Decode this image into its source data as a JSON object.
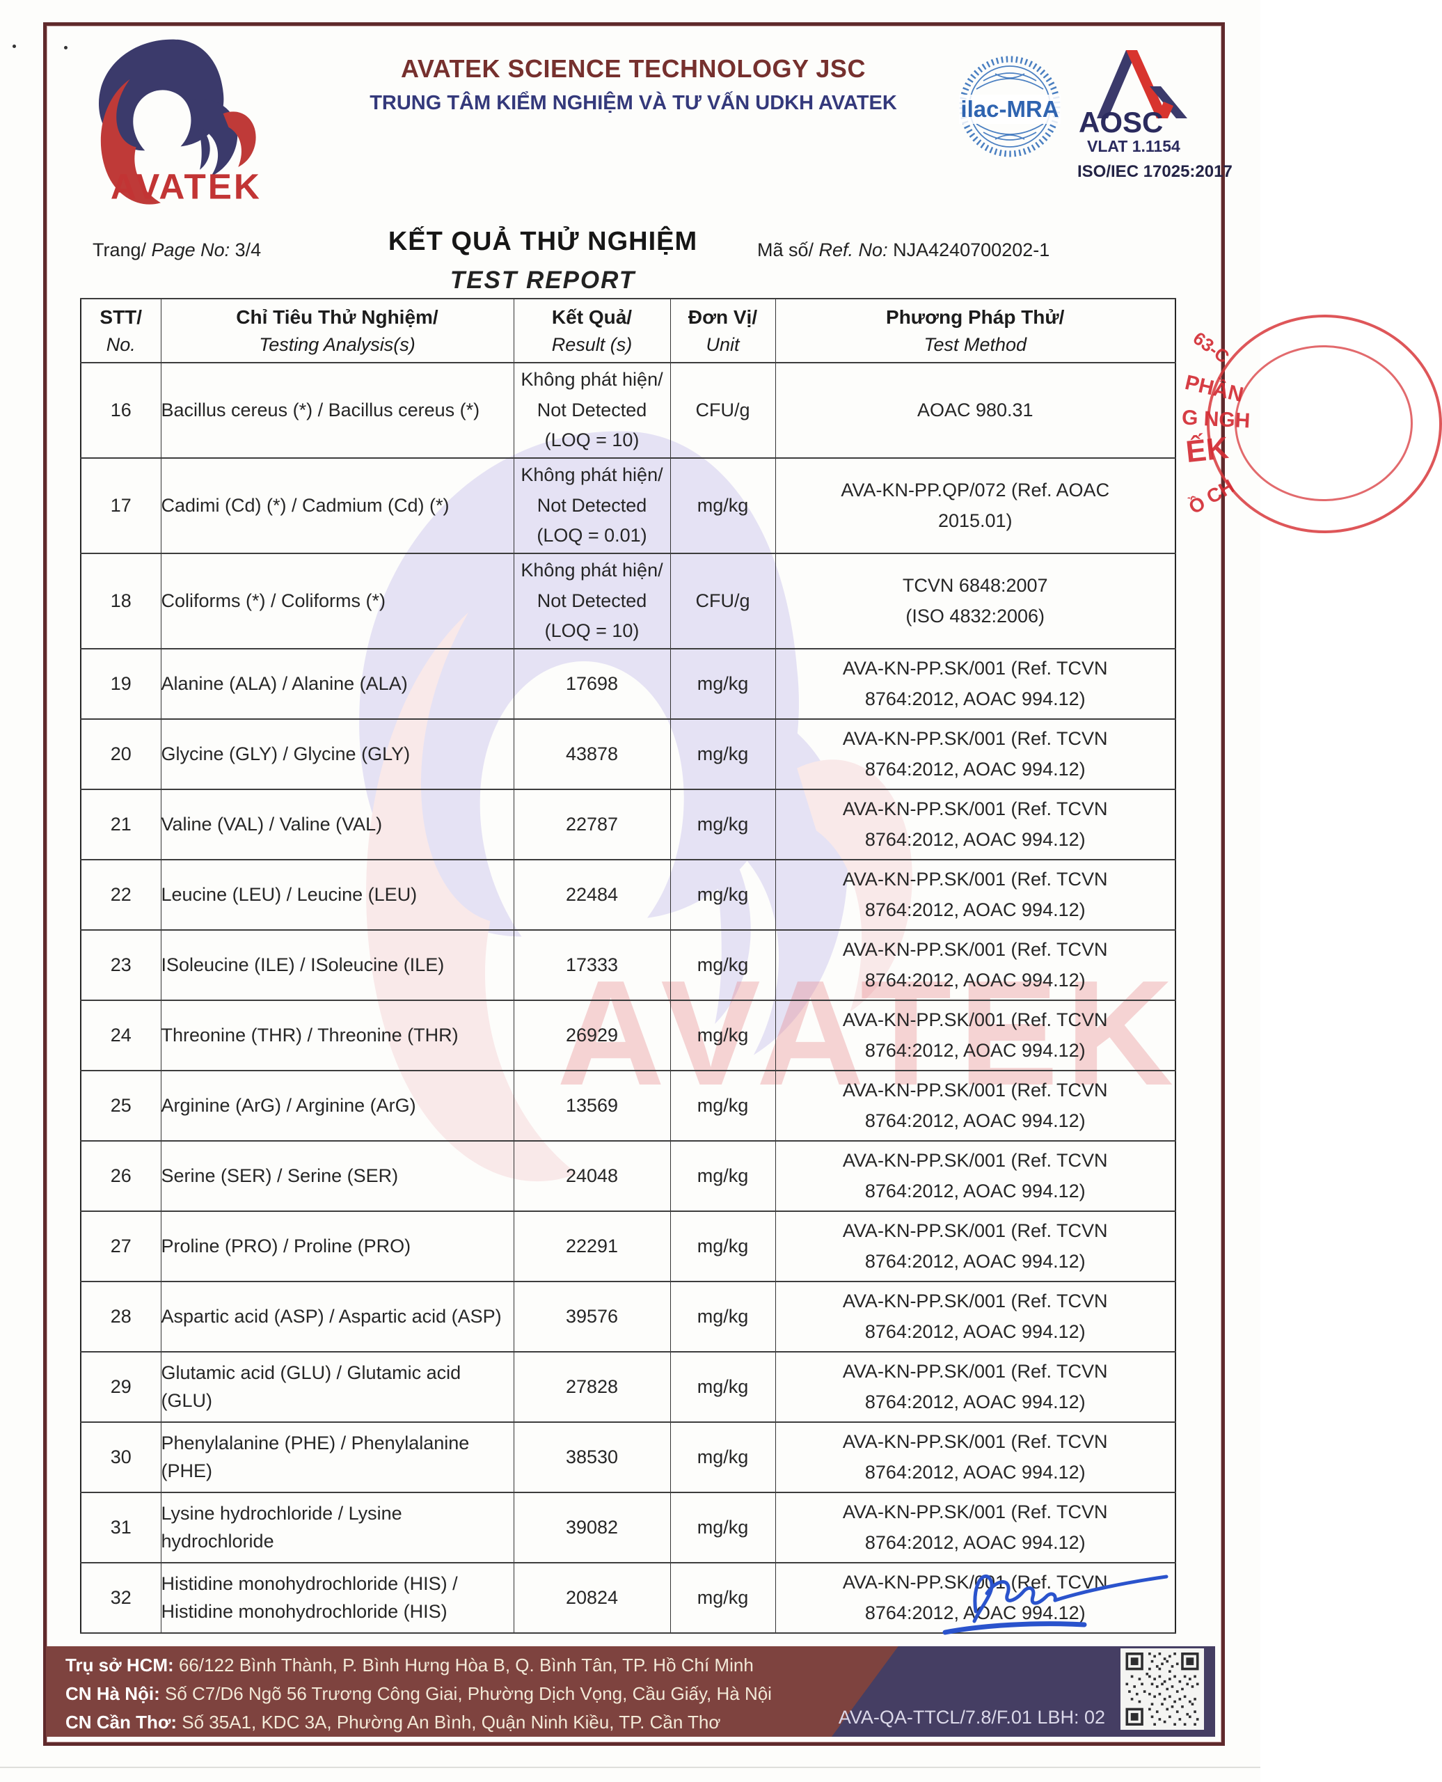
{
  "header": {
    "logo_text": "AVATEK",
    "company_name": "AVATEK SCIENCE TECHNOLOGY JSC",
    "center_name": "TRUNG TÂM KIỂM NGHIỆM VÀ TƯ VẤN UDKH AVATEK",
    "ilac_label": "ilac-MRA",
    "aosc": {
      "name": "AOSC",
      "vlat": "VLAT 1.1154",
      "iso": "ISO/IEC 17025:2017"
    }
  },
  "title": {
    "page_label": "Trang/ ",
    "page_label_en": "Page No:",
    "page_value": " 3/4",
    "title_vi": "KẾT QUẢ THỬ NGHIỆM",
    "title_en": "TEST REPORT",
    "ref_label": "Mã số/ ",
    "ref_label_en": "Ref. No:",
    "ref_value": " NJA4240700202-1"
  },
  "watermark": {
    "text": "AVATEK"
  },
  "table": {
    "headers": [
      {
        "vi": "STT/",
        "en": "No."
      },
      {
        "vi": "Chỉ Tiêu Thử Nghiệm/",
        "en": "Testing Analysis(s)"
      },
      {
        "vi": "Kết Quả/",
        "en": "Result (s)"
      },
      {
        "vi": "Đơn Vị/",
        "en": "Unit"
      },
      {
        "vi": "Phương Pháp Thử/",
        "en": "Test Method"
      }
    ],
    "rows": [
      {
        "no": "16",
        "analysis": [
          "Bacillus cereus (*) / Bacillus cereus (*)"
        ],
        "result": [
          "Không phát hiện/",
          "Not Detected",
          "(LOQ = 10)"
        ],
        "unit": "CFU/g",
        "method": [
          "AOAC 980.31"
        ]
      },
      {
        "no": "17",
        "analysis": [
          "Cadimi (Cd) (*) / Cadmium (Cd) (*)"
        ],
        "result": [
          "Không phát hiện/",
          "Not Detected",
          "(LOQ = 0.01)"
        ],
        "unit": "mg/kg",
        "method": [
          "AVA-KN-PP.QP/072 (Ref. AOAC",
          "2015.01)"
        ]
      },
      {
        "no": "18",
        "analysis": [
          "Coliforms (*) / Coliforms (*)"
        ],
        "result": [
          "Không phát hiện/",
          "Not Detected",
          "(LOQ = 10)"
        ],
        "unit": "CFU/g",
        "method": [
          "TCVN 6848:2007",
          "(ISO 4832:2006)"
        ]
      },
      {
        "no": "19",
        "analysis": [
          "Alanine (ALA) / Alanine (ALA)"
        ],
        "result": [
          "17698"
        ],
        "unit": "mg/kg",
        "method": [
          "AVA-KN-PP.SK/001 (Ref. TCVN",
          "8764:2012, AOAC 994.12)"
        ]
      },
      {
        "no": "20",
        "analysis": [
          "Glycine (GLY) / Glycine (GLY)"
        ],
        "result": [
          "43878"
        ],
        "unit": "mg/kg",
        "method": [
          "AVA-KN-PP.SK/001 (Ref. TCVN",
          "8764:2012, AOAC 994.12)"
        ]
      },
      {
        "no": "21",
        "analysis": [
          "Valine (VAL) / Valine (VAL)"
        ],
        "result": [
          "22787"
        ],
        "unit": "mg/kg",
        "method": [
          "AVA-KN-PP.SK/001 (Ref. TCVN",
          "8764:2012, AOAC 994.12)"
        ]
      },
      {
        "no": "22",
        "analysis": [
          "Leucine (LEU) / Leucine (LEU)"
        ],
        "result": [
          "22484"
        ],
        "unit": "mg/kg",
        "method": [
          "AVA-KN-PP.SK/001 (Ref. TCVN",
          "8764:2012, AOAC 994.12)"
        ]
      },
      {
        "no": "23",
        "analysis": [
          "ISoleucine (ILE) / ISoleucine (ILE)"
        ],
        "result": [
          "17333"
        ],
        "unit": "mg/kg",
        "method": [
          "AVA-KN-PP.SK/001 (Ref. TCVN",
          "8764:2012, AOAC 994.12)"
        ]
      },
      {
        "no": "24",
        "analysis": [
          "Threonine (THR) / Threonine (THR)"
        ],
        "result": [
          "26929"
        ],
        "unit": "mg/kg",
        "method": [
          "AVA-KN-PP.SK/001 (Ref. TCVN",
          "8764:2012, AOAC 994.12)"
        ]
      },
      {
        "no": "25",
        "analysis": [
          "Arginine (ArG) / Arginine (ArG)"
        ],
        "result": [
          "13569"
        ],
        "unit": "mg/kg",
        "method": [
          "AVA-KN-PP.SK/001 (Ref. TCVN",
          "8764:2012, AOAC 994.12)"
        ]
      },
      {
        "no": "26",
        "analysis": [
          "Serine (SER) / Serine (SER)"
        ],
        "result": [
          "24048"
        ],
        "unit": "mg/kg",
        "method": [
          "AVA-KN-PP.SK/001 (Ref. TCVN",
          "8764:2012, AOAC 994.12)"
        ]
      },
      {
        "no": "27",
        "analysis": [
          "Proline (PRO) / Proline (PRO)"
        ],
        "result": [
          "22291"
        ],
        "unit": "mg/kg",
        "method": [
          "AVA-KN-PP.SK/001 (Ref. TCVN",
          "8764:2012, AOAC 994.12)"
        ]
      },
      {
        "no": "28",
        "analysis": [
          "Aspartic acid (ASP) / Aspartic acid (ASP)"
        ],
        "result": [
          "39576"
        ],
        "unit": "mg/kg",
        "method": [
          "AVA-KN-PP.SK/001 (Ref. TCVN",
          "8764:2012, AOAC 994.12)"
        ]
      },
      {
        "no": "29",
        "analysis": [
          "Glutamic acid (GLU) / Glutamic acid",
          "(GLU)"
        ],
        "result": [
          "27828"
        ],
        "unit": "mg/kg",
        "method": [
          "AVA-KN-PP.SK/001 (Ref. TCVN",
          "8764:2012, AOAC 994.12)"
        ]
      },
      {
        "no": "30",
        "analysis": [
          "Phenylalanine (PHE) / Phenylalanine",
          "(PHE)"
        ],
        "result": [
          "38530"
        ],
        "unit": "mg/kg",
        "method": [
          "AVA-KN-PP.SK/001 (Ref. TCVN",
          "8764:2012, AOAC 994.12)"
        ]
      },
      {
        "no": "31",
        "analysis": [
          "Lysine hydrochloride / Lysine",
          "hydrochloride"
        ],
        "result": [
          "39082"
        ],
        "unit": "mg/kg",
        "method": [
          "AVA-KN-PP.SK/001 (Ref. TCVN",
          "8764:2012, AOAC 994.12)"
        ]
      },
      {
        "no": "32",
        "analysis": [
          "Histidine monohydrochloride (HIS) /",
          "Histidine monohydrochloride (HIS)"
        ],
        "result": [
          "20824"
        ],
        "unit": "mg/kg",
        "method": [
          "AVA-KN-PP.SK/001 (Ref. TCVN",
          "8764:2012, AOAC 994.12)"
        ]
      }
    ]
  },
  "stamp": {
    "fragments": [
      "63-C",
      "PHẦN",
      "G NGH",
      "ẾK",
      "Ồ CH"
    ]
  },
  "footer": {
    "lines": [
      {
        "label": "Trụ sở HCM:",
        "text": " 66/122 Bình Thành, P. Bình Hưng Hòa B, Q. Bình Tân, TP. Hồ Chí Minh"
      },
      {
        "label": "CN Hà Nội:",
        "text": " Số C7/D6 Ngõ 56 Trương Công Giai, Phường Dịch Vọng, Cầu Giấy, Hà Nội"
      },
      {
        "label": "CN Cần Thơ:",
        "text": " Số 35A1, KDC 3A, Phường An Bình, Quận Ninh Kiều, TP. Cần Thơ"
      }
    ],
    "qa_code": "AVA-QA-TTCL/7.8/F.01 LBH: 02"
  },
  "colors": {
    "border_maroon": "#602a2c",
    "company_maroon": "#76302e",
    "navy": "#34397b",
    "footer_maroon": "#7e433f",
    "footer_navy": "#453e63",
    "stamp_red": "#d32c34",
    "signature_blue": "#2a53cc",
    "ilac_blue": "#2f64b0"
  }
}
